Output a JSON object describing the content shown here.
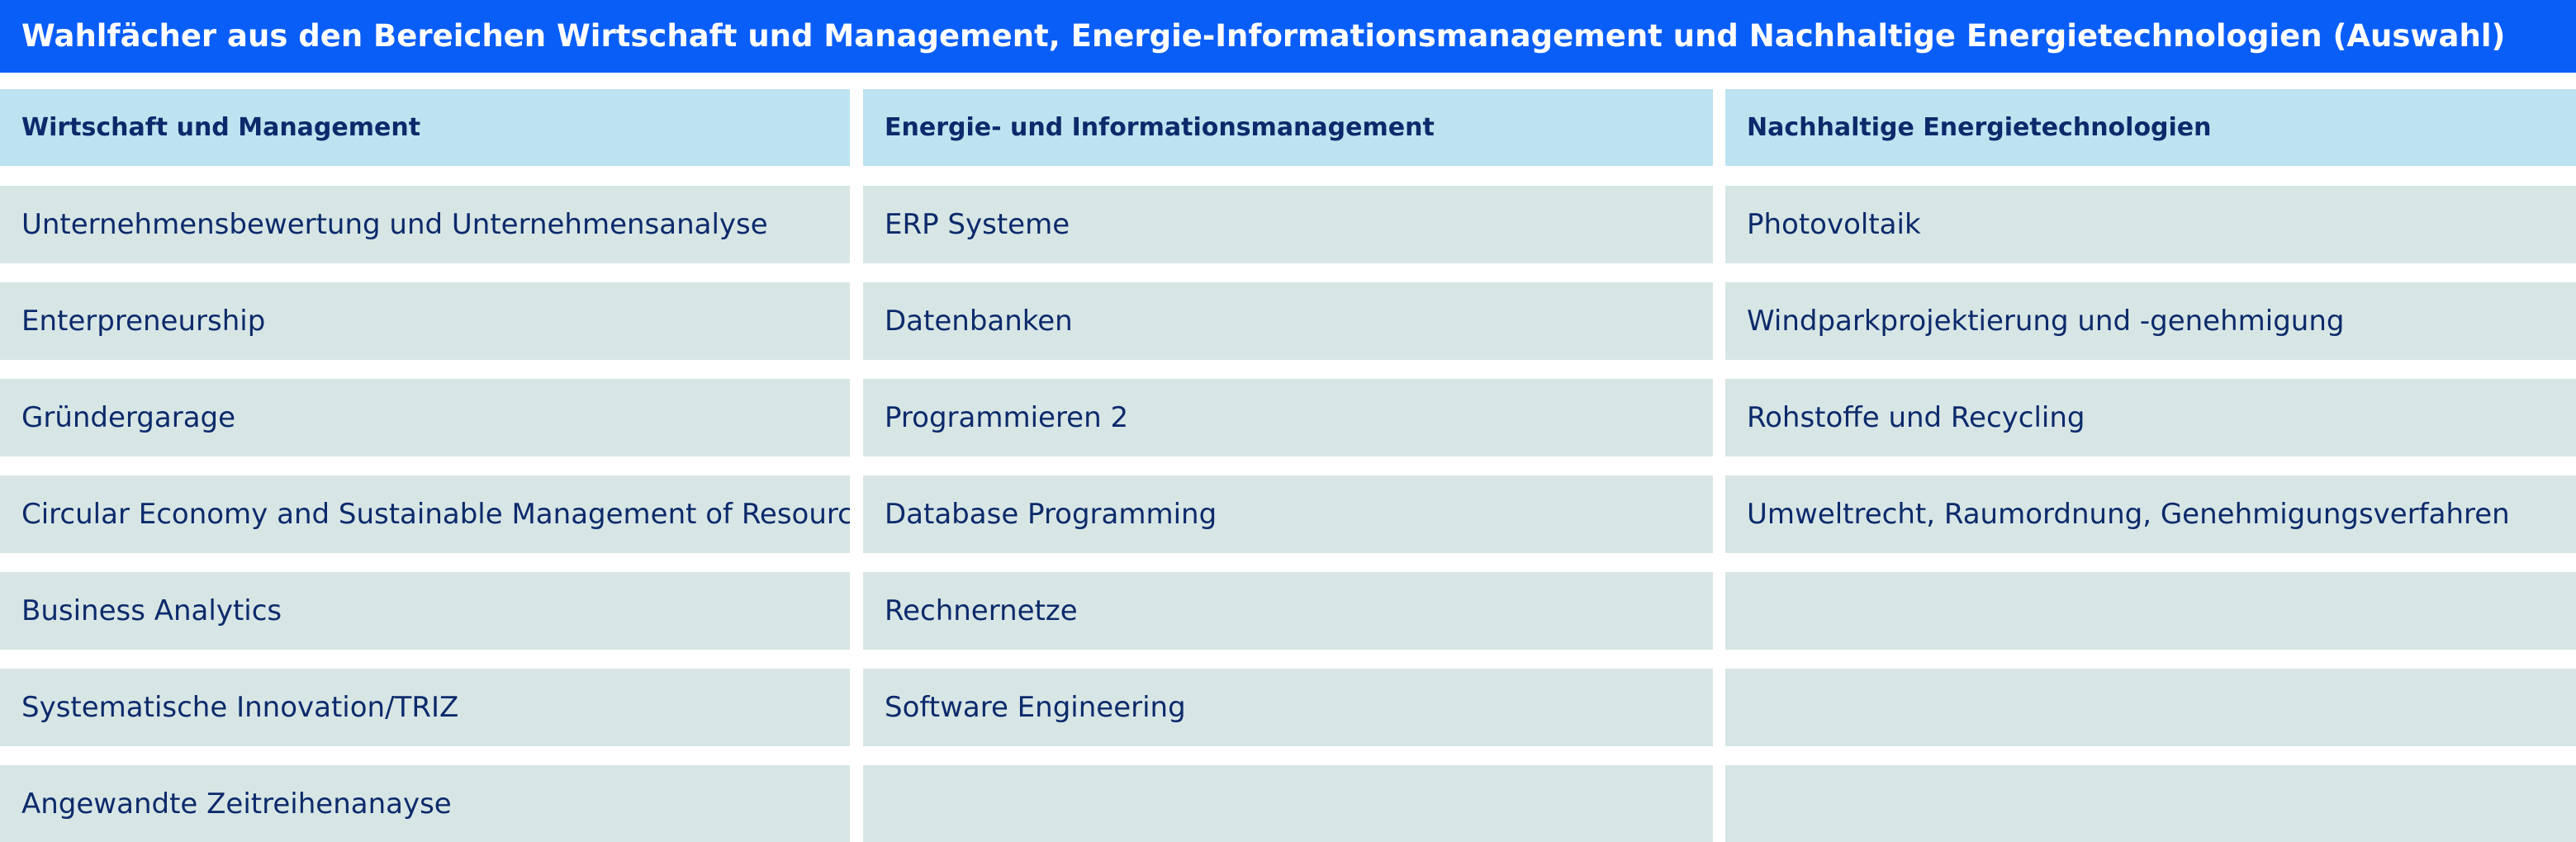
{
  "title": "Wahlfächer aus den Bereichen Wirtschaft und Management, Energie-Informationsmanagement und Nachhaltige Energietechnologien (Auswahl)",
  "colors": {
    "banner": "#0a5ef8",
    "header_cell": "#bde3f1",
    "item_cell": "#d7e6e5",
    "text": "#0c2a6b"
  },
  "columns": [
    {
      "header": "Wirtschaft und Management",
      "items": [
        "Unternehmensbewertung und Unternehmensanalyse",
        "Enterpreneurship",
        "Gründergarage",
        "Circular Economy and Sustainable Management of Resources",
        "Business Analytics",
        "Systematische Innovation/TRIZ",
        "Angewandte Zeitreihenanayse"
      ]
    },
    {
      "header": "Energie- und Informationsmanagement",
      "items": [
        "ERP Systeme",
        "Datenbanken",
        "Programmieren 2",
        "Database Programming",
        "Rechnernetze",
        "Software Engineering",
        ""
      ]
    },
    {
      "header": "Nachhaltige Energietechnologien",
      "items": [
        "Photovoltaik",
        "Windparkprojektierung und -genehmigung",
        "Rohstoffe und Recycling",
        "Umweltrecht, Raumordnung, Genehmigungsverfahren",
        "",
        "",
        ""
      ]
    }
  ]
}
